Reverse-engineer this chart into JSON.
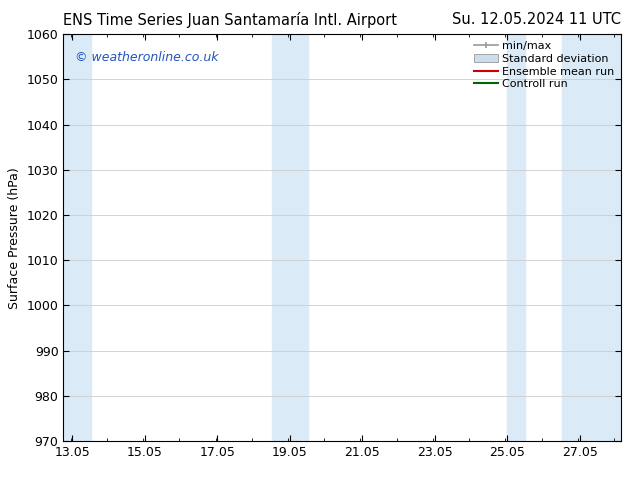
{
  "title_left": "ENS Time Series Juan Santamaría Intl. Airport",
  "title_right": "Su. 12.05.2024 11 UTC",
  "ylabel": "Surface Pressure (hPa)",
  "ylim": [
    970,
    1060
  ],
  "yticks": [
    970,
    980,
    990,
    1000,
    1010,
    1020,
    1030,
    1040,
    1050,
    1060
  ],
  "xlim_start": 12.8,
  "xlim_end": 28.2,
  "xticks": [
    13.05,
    15.05,
    17.05,
    19.05,
    21.05,
    23.05,
    25.05,
    27.05
  ],
  "xtick_labels": [
    "13.05",
    "15.05",
    "17.05",
    "19.05",
    "21.05",
    "23.05",
    "25.05",
    "27.05"
  ],
  "shaded_bands": [
    {
      "x_start": 12.8,
      "x_end": 13.55,
      "color": "#daeaf7"
    },
    {
      "x_start": 18.55,
      "x_end": 19.55,
      "color": "#daeaf7"
    },
    {
      "x_start": 25.05,
      "x_end": 25.55,
      "color": "#daeaf7"
    },
    {
      "x_start": 26.55,
      "x_end": 28.2,
      "color": "#daeaf7"
    }
  ],
  "watermark_text": "© weatheronline.co.uk",
  "watermark_color": "#2255bb",
  "legend_items": [
    {
      "label": "min/max",
      "color": "#999999",
      "type": "errorbar"
    },
    {
      "label": "Standard deviation",
      "color": "#ccdded",
      "type": "box"
    },
    {
      "label": "Ensemble mean run",
      "color": "#cc0000",
      "type": "line"
    },
    {
      "label": "Controll run",
      "color": "#006600",
      "type": "line"
    }
  ],
  "background_color": "#ffffff",
  "plot_bg_color": "#ffffff",
  "grid_color": "#cccccc",
  "tick_color": "#000000",
  "spine_color": "#000000",
  "title_fontsize": 10.5,
  "label_fontsize": 9,
  "tick_fontsize": 9,
  "legend_fontsize": 8
}
